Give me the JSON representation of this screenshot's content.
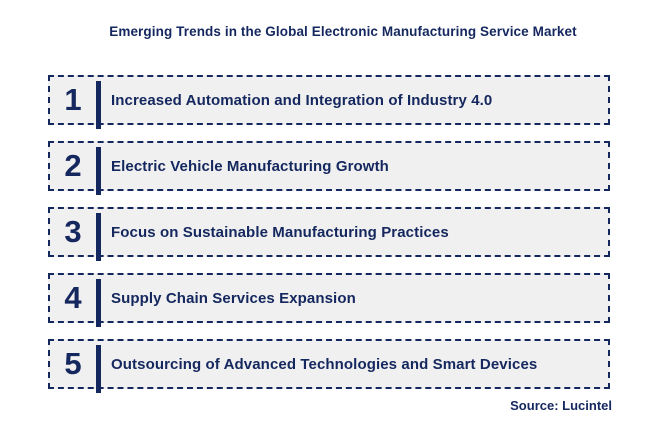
{
  "title": "Emerging Trends in the Global Electronic Manufacturing Service Market",
  "trends": [
    {
      "number": "1",
      "label": "Increased Automation and Integration of Industry 4.0"
    },
    {
      "number": "2",
      "label": "Electric Vehicle Manufacturing Growth"
    },
    {
      "number": "3",
      "label": "Focus on Sustainable Manufacturing Practices"
    },
    {
      "number": "4",
      "label": "Supply Chain Services Expansion"
    },
    {
      "number": "5",
      "label": "Outsourcing of Advanced Technologies and Smart Devices"
    }
  ],
  "source": "Source: Lucintel",
  "colors": {
    "navy": "#14275e",
    "row_bg": "#f0f0f0",
    "page_bg": "#ffffff"
  }
}
